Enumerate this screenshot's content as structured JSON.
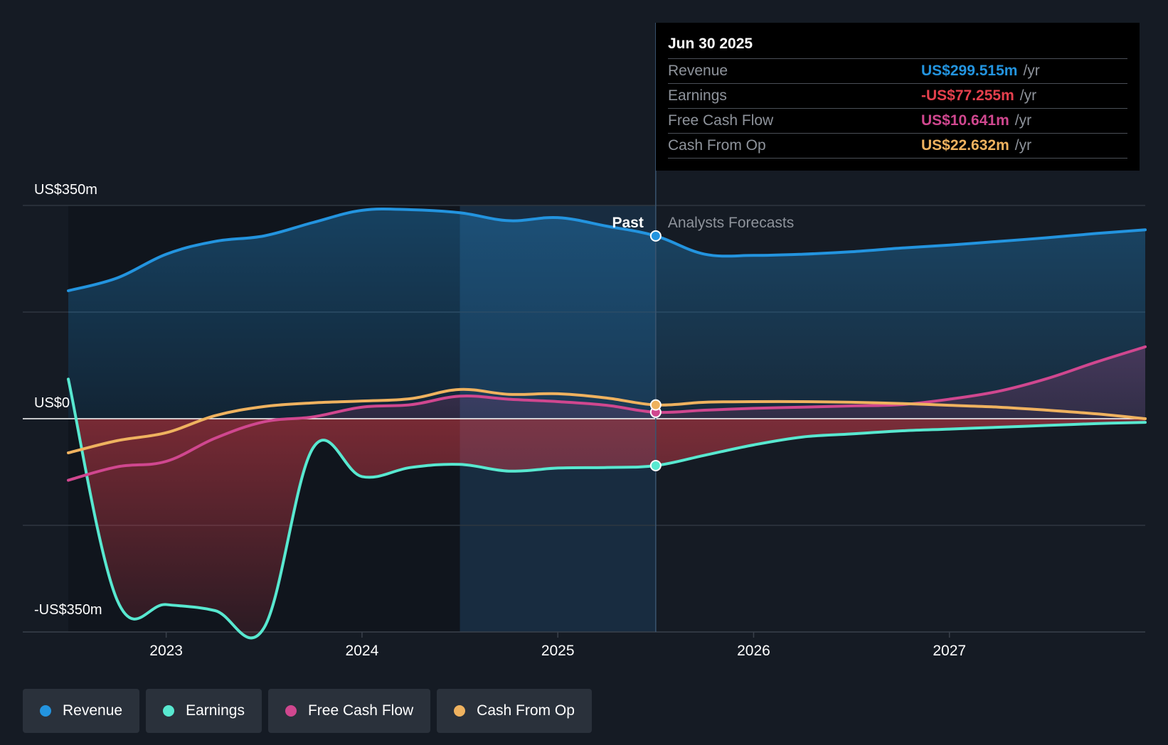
{
  "chart_data": {
    "type": "area",
    "x": [
      2022.5,
      2022.75,
      2023.0,
      2023.25,
      2023.5,
      2023.75,
      2024.0,
      2024.25,
      2024.5,
      2024.75,
      2025.0,
      2025.25,
      2025.5,
      2025.75,
      2026.0,
      2026.25,
      2026.5,
      2026.75,
      2027.0,
      2027.25,
      2027.5,
      2027.75,
      2028.0
    ],
    "series": [
      {
        "name": "Revenue",
        "color": "#2394df",
        "values": [
          210,
          231,
          270,
          291,
          300,
          322,
          342,
          343,
          338,
          325,
          330,
          316,
          300,
          270,
          268,
          270,
          274,
          280,
          285,
          291,
          297,
          304,
          310
        ]
      },
      {
        "name": "Earnings",
        "color": "#58e8d0",
        "values": [
          65,
          -298,
          -305,
          -315,
          -343,
          -48,
          -95,
          -80,
          -75,
          -86,
          -81,
          -80,
          -77,
          -60,
          -43,
          -30,
          -25,
          -20,
          -17,
          -14,
          -11,
          -8,
          -6
        ]
      },
      {
        "name": "Free Cash Flow",
        "color": "#d0478f",
        "values": [
          -101,
          -79,
          -70,
          -32,
          -5,
          3,
          19,
          23,
          37,
          32,
          28,
          22,
          10.6,
          14,
          17,
          19,
          21,
          23,
          32,
          45,
          66,
          93,
          118
        ]
      },
      {
        "name": "Cash From Op",
        "color": "#efb25f",
        "values": [
          -56,
          -36,
          -23,
          5,
          20,
          26,
          29,
          33,
          48,
          40,
          41,
          34,
          22.6,
          27,
          28,
          28,
          27,
          25,
          22,
          19,
          14,
          8,
          0
        ]
      }
    ],
    "ylim": [
      -350,
      350
    ],
    "y_tick_labels": [
      "US$350m",
      "US$0",
      "-US$350m"
    ],
    "x_ticks": [
      2023,
      2024,
      2025,
      2026,
      2027
    ],
    "x_tick_labels": [
      "2023",
      "2024",
      "2025",
      "2026",
      "2027"
    ],
    "past_label": "Past",
    "forecast_label": "Analysts Forecasts",
    "divider_x": 2025.5,
    "highlight_start_x": 2024.5,
    "legend_placement": "bottom"
  },
  "tooltip": {
    "date": "Jun 30 2025",
    "rows": [
      {
        "label": "Revenue",
        "value": "US$299.515m",
        "unit": "/yr",
        "color": "#2394df"
      },
      {
        "label": "Earnings",
        "value": "-US$77.255m",
        "unit": "/yr",
        "color": "#e5404d"
      },
      {
        "label": "Free Cash Flow",
        "value": "US$10.641m",
        "unit": "/yr",
        "color": "#d0478f"
      },
      {
        "label": "Cash From Op",
        "value": "US$22.632m",
        "unit": "/yr",
        "color": "#efb25f"
      }
    ]
  },
  "legend": {
    "items": [
      {
        "label": "Revenue",
        "color": "#2394df"
      },
      {
        "label": "Earnings",
        "color": "#58e8d0"
      },
      {
        "label": "Free Cash Flow",
        "color": "#d0478f"
      },
      {
        "label": "Cash From Op",
        "color": "#efb25f"
      }
    ]
  }
}
